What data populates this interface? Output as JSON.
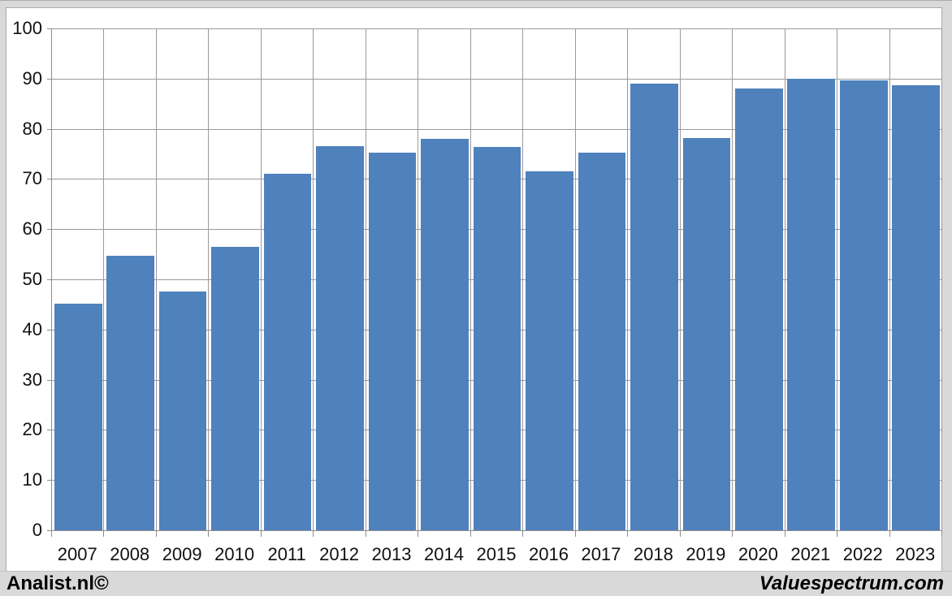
{
  "chart_data": {
    "type": "bar",
    "title": "",
    "xlabel": "",
    "ylabel": "",
    "categories": [
      "2007",
      "2008",
      "2009",
      "2010",
      "2011",
      "2012",
      "2013",
      "2014",
      "2015",
      "2016",
      "2017",
      "2018",
      "2019",
      "2020",
      "2021",
      "2022",
      "2023"
    ],
    "values": [
      45.2,
      54.7,
      47.5,
      56.5,
      71.0,
      76.6,
      75.2,
      78.0,
      76.4,
      71.5,
      75.2,
      89.0,
      78.2,
      88.0,
      90.0,
      89.7,
      88.7
    ],
    "ylim": [
      0,
      100
    ],
    "ytick_step": 10,
    "yticks": [
      0,
      10,
      20,
      30,
      40,
      50,
      60,
      70,
      80,
      90,
      100
    ],
    "grid": true,
    "legend": "none",
    "bar_color": "#4f81bd",
    "gridline_color": "#9a9a9a",
    "axis_color": "#8c8c8c",
    "plot_background": "#ffffff",
    "page_background": "#d9d9d9"
  },
  "footer": {
    "left_brand": "Analist.nl©",
    "right_brand": "Valuespectrum.com"
  }
}
